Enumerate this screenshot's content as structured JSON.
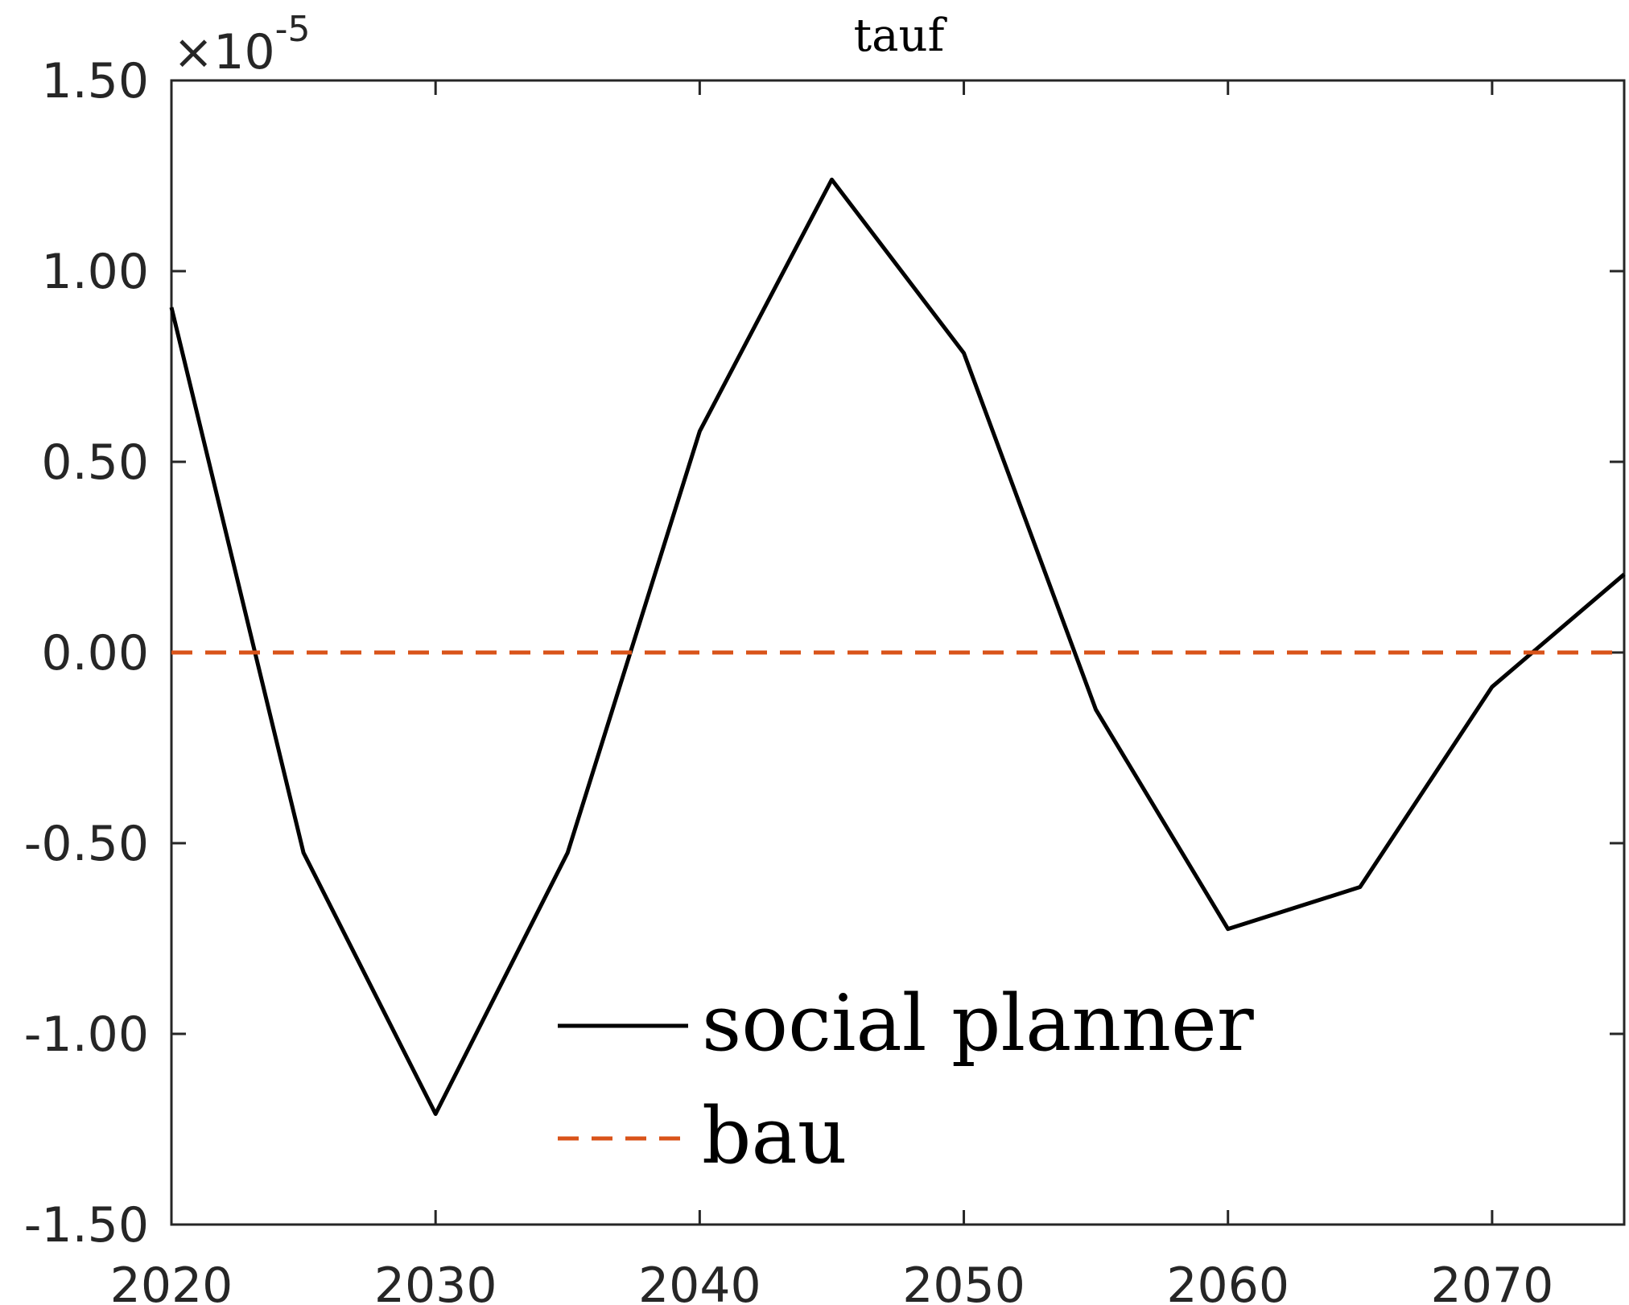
{
  "chart_data": {
    "type": "line",
    "title": "tauf",
    "xlabel": "",
    "ylabel": "",
    "x": [
      2020,
      2025,
      2030,
      2035,
      2040,
      2045,
      2050,
      2055,
      2060,
      2065,
      2070,
      2075
    ],
    "xlim": [
      2020,
      2075
    ],
    "ylim": [
      -1.5,
      1.5
    ],
    "y_multiplier": "×10",
    "y_exponent": "-5",
    "xticks": [
      2020,
      2030,
      2040,
      2050,
      2060,
      2070
    ],
    "xtick_labels": [
      "2020",
      "2030",
      "2040",
      "2050",
      "2060",
      "2070"
    ],
    "yticks": [
      -1.5,
      -1.0,
      -0.5,
      0.0,
      0.5,
      1.0,
      1.5
    ],
    "ytick_labels": [
      "-1.50",
      "-1.00",
      "-0.50",
      "0.00",
      "0.50",
      "1.00",
      "1.50"
    ],
    "grid": false,
    "legend_position": "bottom-center",
    "series": [
      {
        "name": "social planner",
        "style": "solid",
        "color": "#000000",
        "values": [
          0.905,
          -0.525,
          -1.21,
          -0.525,
          0.58,
          1.24,
          0.785,
          -0.15,
          -0.725,
          -0.615,
          -0.09,
          0.205
        ]
      },
      {
        "name": "bau",
        "style": "dashed",
        "color": "#D95319",
        "values": [
          0,
          0,
          0,
          0,
          0,
          0,
          0,
          0,
          0,
          0,
          0,
          0
        ]
      }
    ]
  }
}
